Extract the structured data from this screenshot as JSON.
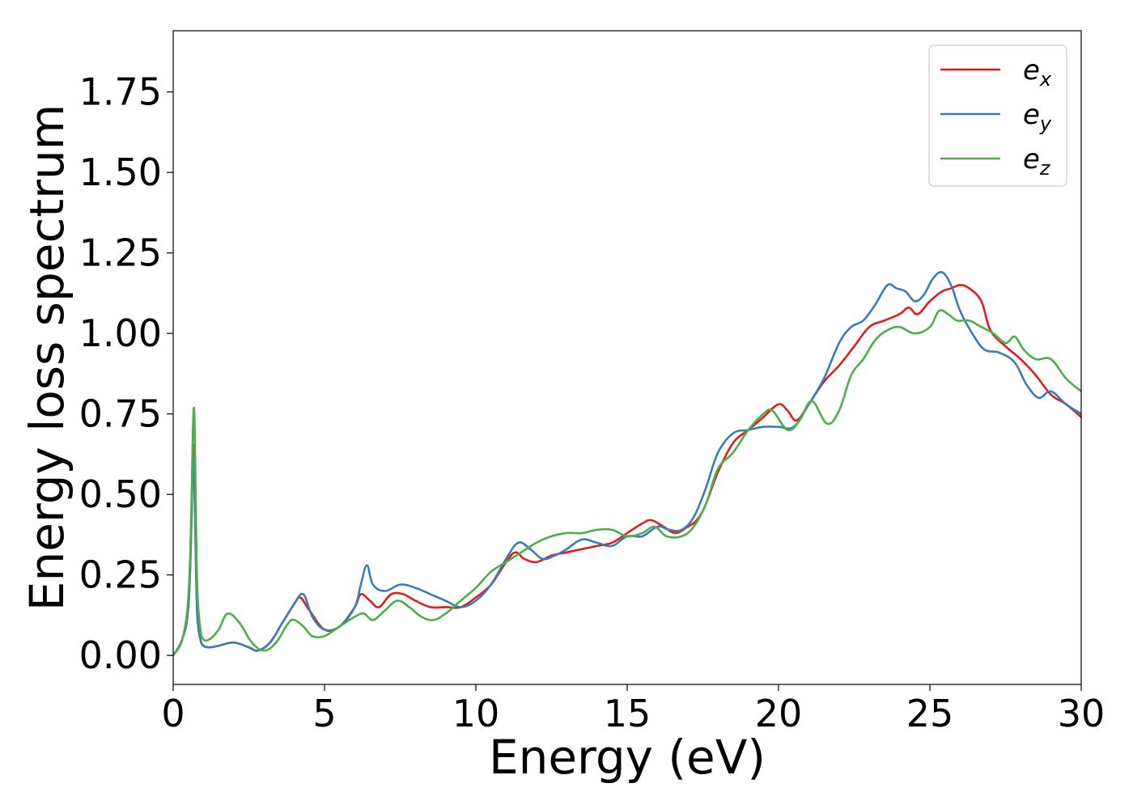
{
  "chart_data": {
    "type": "line",
    "xlabel": "Energy (eV)",
    "ylabel": "Energy loss spectrum",
    "xlim": [
      0,
      30
    ],
    "ylim": [
      -0.09,
      1.94
    ],
    "xticks": [
      0,
      5,
      10,
      15,
      20,
      25,
      30
    ],
    "xtick_labels": [
      "0",
      "5",
      "10",
      "15",
      "20",
      "25",
      "30"
    ],
    "yticks": [
      0.0,
      0.25,
      0.5,
      0.75,
      1.0,
      1.25,
      1.5,
      1.75
    ],
    "ytick_labels": [
      "0.00",
      "0.25",
      "0.50",
      "0.75",
      "1.00",
      "1.25",
      "1.50",
      "1.75"
    ],
    "grid": false,
    "legend_position": "top-right",
    "series": [
      {
        "name": "e_x",
        "label_base": "e",
        "label_sub": "x",
        "color": "#e41a1c",
        "x": [
          0,
          0.3,
          0.5,
          0.6,
          0.65,
          0.7,
          0.75,
          0.8,
          0.9,
          1.0,
          1.2,
          1.5,
          2.0,
          2.5,
          2.8,
          3.2,
          3.6,
          4.0,
          4.2,
          4.5,
          5.0,
          5.5,
          6.0,
          6.2,
          6.5,
          6.8,
          7.2,
          7.6,
          8.0,
          8.5,
          9.0,
          9.5,
          10.0,
          10.5,
          11.0,
          11.3,
          11.6,
          12.0,
          12.5,
          13.0,
          13.5,
          14.0,
          14.5,
          15.0,
          15.5,
          15.8,
          16.2,
          16.6,
          17.0,
          17.3,
          17.6,
          18.0,
          18.5,
          19.0,
          19.5,
          20.0,
          20.3,
          20.6,
          21.0,
          21.5,
          22.0,
          22.5,
          23.0,
          23.5,
          24.0,
          24.3,
          24.6,
          25.0,
          25.4,
          25.7,
          26.0,
          26.3,
          26.7,
          27.0,
          27.5,
          28.0,
          28.5,
          29.0,
          29.5,
          30.0
        ],
        "y": [
          0.0,
          0.05,
          0.15,
          0.4,
          0.65,
          0.55,
          0.3,
          0.12,
          0.05,
          0.03,
          0.025,
          0.03,
          0.04,
          0.025,
          0.015,
          0.04,
          0.1,
          0.16,
          0.18,
          0.14,
          0.08,
          0.09,
          0.15,
          0.19,
          0.17,
          0.15,
          0.19,
          0.19,
          0.17,
          0.15,
          0.15,
          0.15,
          0.18,
          0.22,
          0.29,
          0.32,
          0.3,
          0.29,
          0.31,
          0.32,
          0.33,
          0.34,
          0.35,
          0.38,
          0.41,
          0.42,
          0.4,
          0.38,
          0.4,
          0.42,
          0.47,
          0.57,
          0.66,
          0.7,
          0.74,
          0.78,
          0.76,
          0.73,
          0.78,
          0.85,
          0.9,
          0.96,
          1.02,
          1.04,
          1.06,
          1.08,
          1.06,
          1.1,
          1.13,
          1.14,
          1.15,
          1.14,
          1.1,
          1.01,
          0.96,
          0.92,
          0.87,
          0.81,
          0.78,
          0.74
        ]
      },
      {
        "name": "e_y",
        "label_base": "e",
        "label_sub": "y",
        "color": "#377eb8",
        "x": [
          0,
          0.3,
          0.5,
          0.6,
          0.65,
          0.7,
          0.75,
          0.8,
          0.9,
          1.0,
          1.2,
          1.5,
          2.0,
          2.5,
          2.8,
          3.2,
          3.6,
          4.0,
          4.3,
          4.6,
          5.0,
          5.5,
          6.0,
          6.2,
          6.4,
          6.6,
          7.0,
          7.5,
          8.0,
          8.5,
          9.0,
          9.5,
          10.0,
          10.5,
          11.0,
          11.4,
          11.8,
          12.2,
          12.6,
          13.0,
          13.5,
          14.0,
          14.5,
          15.0,
          15.5,
          16.0,
          16.4,
          16.8,
          17.2,
          17.6,
          18.0,
          18.5,
          19.0,
          19.5,
          20.0,
          20.5,
          21.0,
          21.5,
          22.0,
          22.4,
          22.8,
          23.2,
          23.6,
          23.9,
          24.2,
          24.5,
          24.8,
          25.1,
          25.4,
          25.7,
          26.0,
          26.4,
          26.8,
          27.3,
          27.8,
          28.2,
          28.6,
          29.0,
          29.5,
          30.0
        ],
        "y": [
          0.0,
          0.05,
          0.15,
          0.4,
          0.6,
          0.55,
          0.3,
          0.12,
          0.05,
          0.03,
          0.025,
          0.03,
          0.04,
          0.025,
          0.015,
          0.04,
          0.1,
          0.16,
          0.19,
          0.12,
          0.08,
          0.09,
          0.15,
          0.22,
          0.28,
          0.22,
          0.2,
          0.22,
          0.21,
          0.19,
          0.17,
          0.15,
          0.17,
          0.22,
          0.3,
          0.35,
          0.33,
          0.3,
          0.31,
          0.33,
          0.36,
          0.35,
          0.34,
          0.37,
          0.37,
          0.4,
          0.39,
          0.39,
          0.43,
          0.52,
          0.63,
          0.69,
          0.7,
          0.71,
          0.71,
          0.71,
          0.78,
          0.86,
          0.97,
          1.02,
          1.04,
          1.09,
          1.15,
          1.14,
          1.13,
          1.1,
          1.12,
          1.17,
          1.19,
          1.15,
          1.07,
          1.0,
          0.95,
          0.94,
          0.91,
          0.84,
          0.8,
          0.82,
          0.78,
          0.75
        ]
      },
      {
        "name": "e_z",
        "label_base": "e",
        "label_sub": "z",
        "color": "#4daf4a",
        "x": [
          0,
          0.3,
          0.5,
          0.6,
          0.65,
          0.7,
          0.75,
          0.8,
          0.9,
          1.0,
          1.2,
          1.5,
          1.8,
          2.2,
          2.6,
          3.0,
          3.4,
          3.8,
          4.0,
          4.3,
          4.6,
          5.0,
          5.5,
          6.0,
          6.3,
          6.6,
          7.0,
          7.4,
          7.8,
          8.2,
          8.6,
          9.0,
          9.5,
          10.0,
          10.5,
          11.0,
          11.5,
          12.0,
          12.5,
          13.0,
          13.5,
          14.0,
          14.5,
          15.0,
          15.5,
          15.9,
          16.3,
          16.8,
          17.2,
          17.6,
          18.0,
          18.5,
          19.0,
          19.5,
          19.8,
          20.3,
          20.7,
          21.1,
          21.6,
          22.0,
          22.4,
          22.8,
          23.2,
          23.6,
          24.0,
          24.5,
          25.0,
          25.3,
          25.6,
          25.9,
          26.3,
          26.7,
          27.1,
          27.5,
          27.8,
          28.1,
          28.5,
          29.0,
          29.5,
          30.0
        ],
        "y": [
          0.0,
          0.05,
          0.18,
          0.45,
          0.7,
          0.75,
          0.45,
          0.2,
          0.08,
          0.05,
          0.05,
          0.08,
          0.13,
          0.1,
          0.04,
          0.015,
          0.04,
          0.1,
          0.11,
          0.09,
          0.06,
          0.06,
          0.09,
          0.12,
          0.13,
          0.11,
          0.14,
          0.17,
          0.15,
          0.12,
          0.11,
          0.13,
          0.17,
          0.21,
          0.26,
          0.29,
          0.32,
          0.35,
          0.37,
          0.38,
          0.38,
          0.39,
          0.39,
          0.37,
          0.38,
          0.4,
          0.37,
          0.37,
          0.4,
          0.47,
          0.58,
          0.63,
          0.7,
          0.75,
          0.76,
          0.7,
          0.73,
          0.79,
          0.72,
          0.76,
          0.87,
          0.92,
          0.98,
          1.01,
          1.02,
          1.0,
          1.02,
          1.07,
          1.06,
          1.04,
          1.04,
          1.02,
          1.0,
          0.97,
          0.99,
          0.95,
          0.92,
          0.92,
          0.86,
          0.82
        ]
      }
    ]
  }
}
